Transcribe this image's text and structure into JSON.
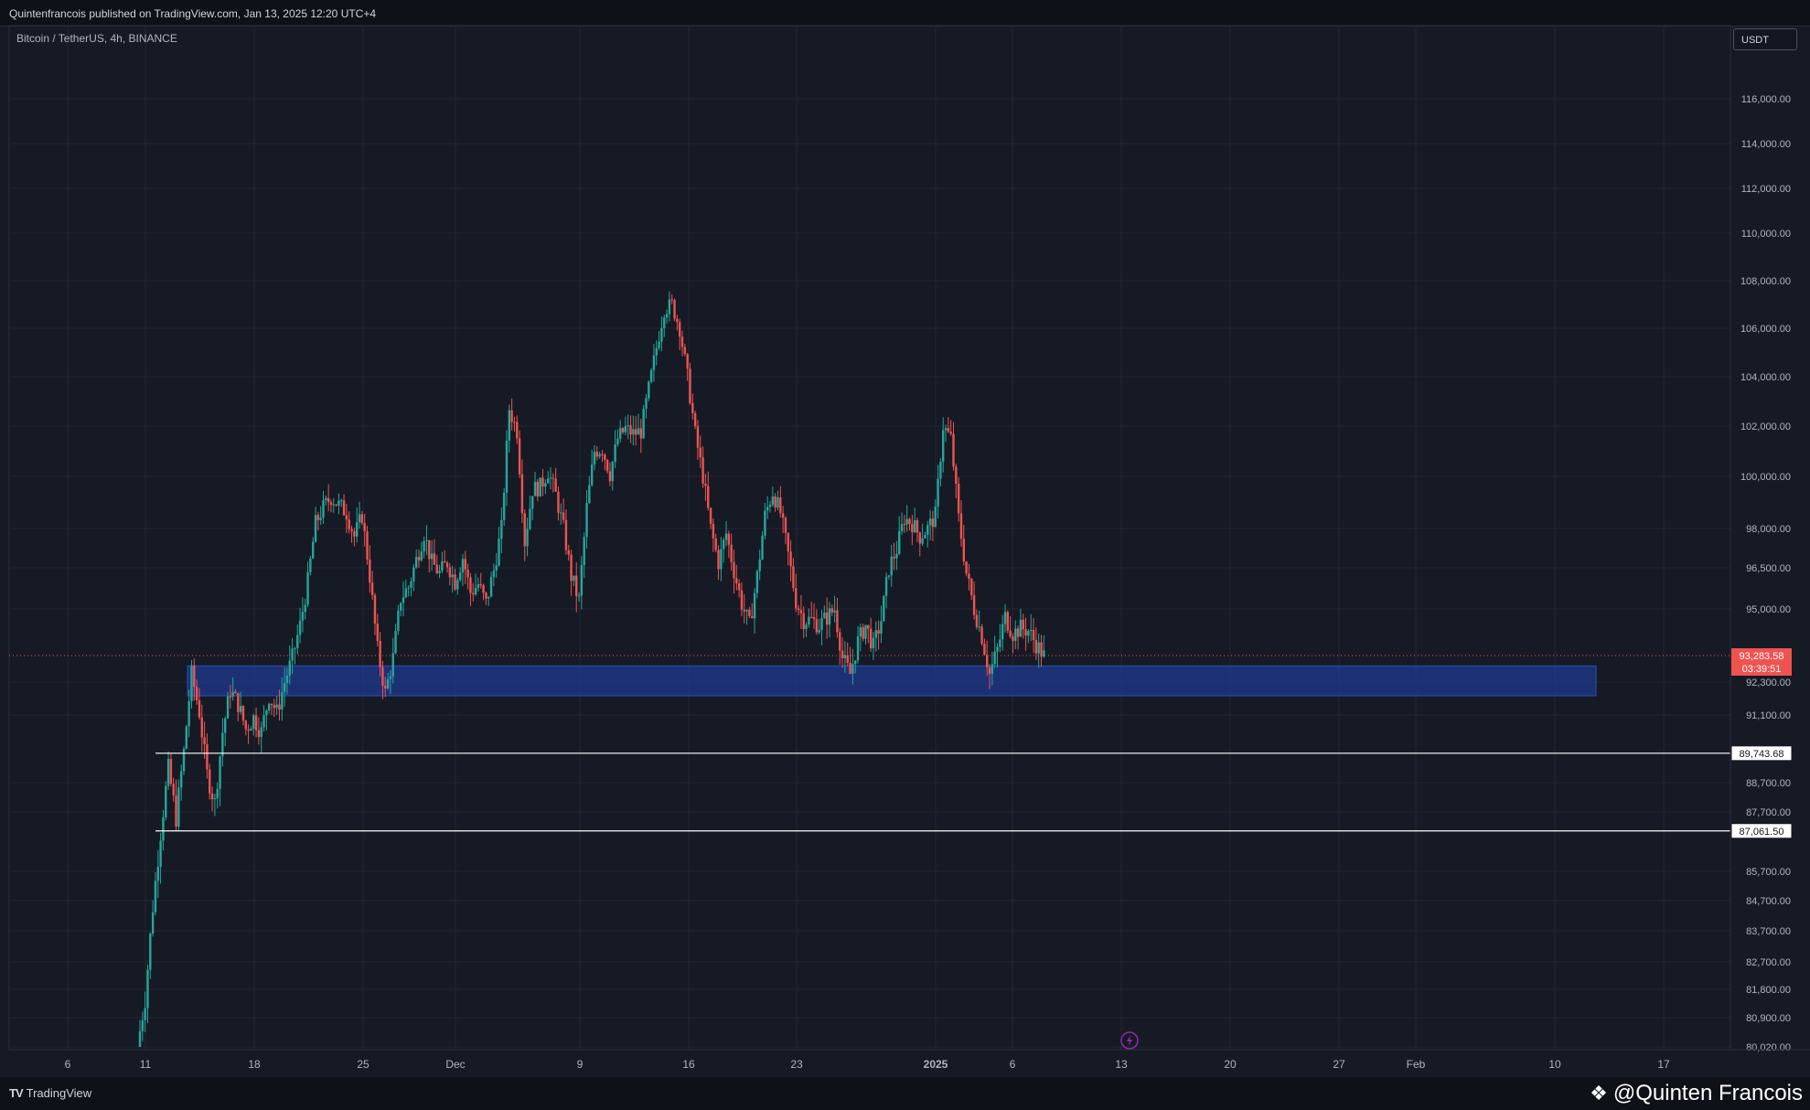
{
  "header": {
    "published": "Quintenfrancois published on TradingView.com, Jan 13, 2025 12:20 UTC+4",
    "symbol": "Bitcoin / TetherUS, 4h, BINANCE"
  },
  "currency": "USDT",
  "footer": {
    "logo": "TradingView",
    "author": "@Quinten Francois"
  },
  "colors": {
    "background": "#161a25",
    "up": "#26a69a",
    "down": "#ef5350",
    "zone": "#1f3a8f",
    "grid": "#232734"
  },
  "chart_data": {
    "type": "candlestick",
    "y_ticks": [
      "116,000.00",
      "114,000.00",
      "112,000.00",
      "110,000.00",
      "108,000.00",
      "106,000.00",
      "104,000.00",
      "102,000.00",
      "100,000.00",
      "98,000.00",
      "96,500.00",
      "95,000.00",
      "92,300.00",
      "91,100.00",
      "88,700.00",
      "87,700.00",
      "85,700.00",
      "84,700.00",
      "83,700.00",
      "82,700.00",
      "81,800.00",
      "80,900.00",
      "80,020.00"
    ],
    "x_ticks": [
      {
        "label": "6",
        "bold": false
      },
      {
        "label": "11",
        "bold": false
      },
      {
        "label": "18",
        "bold": false
      },
      {
        "label": "25",
        "bold": false
      },
      {
        "label": "Dec",
        "bold": false
      },
      {
        "label": "9",
        "bold": false
      },
      {
        "label": "16",
        "bold": false
      },
      {
        "label": "23",
        "bold": false
      },
      {
        "label": "2025",
        "bold": true
      },
      {
        "label": "6",
        "bold": false
      },
      {
        "label": "13",
        "bold": false
      },
      {
        "label": "20",
        "bold": false
      },
      {
        "label": "27",
        "bold": false
      },
      {
        "label": "Feb",
        "bold": false
      },
      {
        "label": "10",
        "bold": false
      },
      {
        "label": "17",
        "bold": false
      }
    ],
    "current_price": {
      "value": 93283.58,
      "label": "93,283.58",
      "countdown": "03:39:51"
    },
    "support_zone": {
      "low": 91800,
      "high": 92900
    },
    "horizontal_lines": [
      {
        "value": 89743.68,
        "label": "89,743.68"
      },
      {
        "value": 87061.5,
        "label": "87,061.50"
      }
    ],
    "price_path": [
      [
        0,
        80000
      ],
      [
        3,
        81500
      ],
      [
        6,
        84500
      ],
      [
        9,
        87000
      ],
      [
        12,
        89200
      ],
      [
        15,
        87500
      ],
      [
        18,
        89800
      ],
      [
        21,
        92600
      ],
      [
        24,
        91200
      ],
      [
        27,
        89000
      ],
      [
        30,
        88000
      ],
      [
        33,
        90500
      ],
      [
        36,
        92000
      ],
      [
        39,
        91500
      ],
      [
        42,
        90600
      ],
      [
        45,
        91000
      ],
      [
        48,
        90500
      ],
      [
        51,
        91800
      ],
      [
        54,
        91200
      ],
      [
        57,
        92300
      ],
      [
        60,
        93200
      ],
      [
        63,
        94400
      ],
      [
        66,
        96000
      ],
      [
        69,
        98200
      ],
      [
        72,
        98800
      ],
      [
        75,
        99200
      ],
      [
        78,
        98900
      ],
      [
        81,
        98600
      ],
      [
        84,
        97700
      ],
      [
        87,
        98500
      ],
      [
        90,
        96200
      ],
      [
        93,
        93500
      ],
      [
        96,
        91900
      ],
      [
        99,
        93200
      ],
      [
        102,
        95400
      ],
      [
        105,
        95800
      ],
      [
        108,
        96800
      ],
      [
        111,
        97800
      ],
      [
        114,
        96700
      ],
      [
        117,
        96300
      ],
      [
        120,
        96700
      ],
      [
        123,
        96000
      ],
      [
        126,
        96900
      ],
      [
        129,
        95600
      ],
      [
        132,
        95900
      ],
      [
        135,
        95200
      ],
      [
        138,
        96400
      ],
      [
        141,
        98000
      ],
      [
        144,
        102700
      ],
      [
        147,
        101800
      ],
      [
        150,
        97500
      ],
      [
        153,
        99500
      ],
      [
        156,
        99600
      ],
      [
        159,
        100200
      ],
      [
        162,
        99300
      ],
      [
        165,
        98000
      ],
      [
        168,
        96200
      ],
      [
        171,
        95300
      ],
      [
        174,
        98800
      ],
      [
        177,
        101000
      ],
      [
        180,
        101100
      ],
      [
        183,
        100100
      ],
      [
        186,
        101500
      ],
      [
        189,
        101900
      ],
      [
        192,
        101700
      ],
      [
        195,
        101800
      ],
      [
        198,
        103500
      ],
      [
        201,
        105200
      ],
      [
        204,
        106800
      ],
      [
        207,
        107000
      ],
      [
        210,
        106000
      ],
      [
        213,
        104000
      ],
      [
        216,
        101700
      ],
      [
        219,
        100000
      ],
      [
        222,
        98000
      ],
      [
        225,
        96700
      ],
      [
        228,
        97800
      ],
      [
        231,
        96400
      ],
      [
        234,
        95200
      ],
      [
        237,
        94400
      ],
      [
        240,
        96200
      ],
      [
        243,
        98500
      ],
      [
        246,
        99400
      ],
      [
        249,
        98600
      ],
      [
        252,
        97000
      ],
      [
        255,
        95300
      ],
      [
        258,
        94600
      ],
      [
        261,
        94600
      ],
      [
        264,
        94400
      ],
      [
        267,
        94700
      ],
      [
        270,
        95000
      ],
      [
        273,
        93200
      ],
      [
        276,
        92600
      ],
      [
        279,
        93800
      ],
      [
        282,
        94400
      ],
      [
        285,
        93600
      ],
      [
        288,
        94600
      ],
      [
        291,
        96500
      ],
      [
        294,
        97200
      ],
      [
        297,
        98400
      ],
      [
        300,
        98200
      ],
      [
        303,
        97700
      ],
      [
        306,
        98000
      ],
      [
        309,
        98500
      ],
      [
        312,
        102000
      ],
      [
        315,
        101500
      ],
      [
        318,
        98400
      ],
      [
        321,
        96300
      ],
      [
        324,
        95000
      ],
      [
        327,
        94000
      ],
      [
        330,
        92600
      ],
      [
        333,
        93500
      ],
      [
        336,
        94700
      ],
      [
        339,
        94100
      ],
      [
        342,
        94300
      ],
      [
        345,
        94200
      ],
      [
        348,
        93700
      ],
      [
        351,
        93283
      ]
    ],
    "axis_labels_on_price_scale": [
      "93,283.58",
      "89,743.68",
      "87,061.50"
    ]
  }
}
